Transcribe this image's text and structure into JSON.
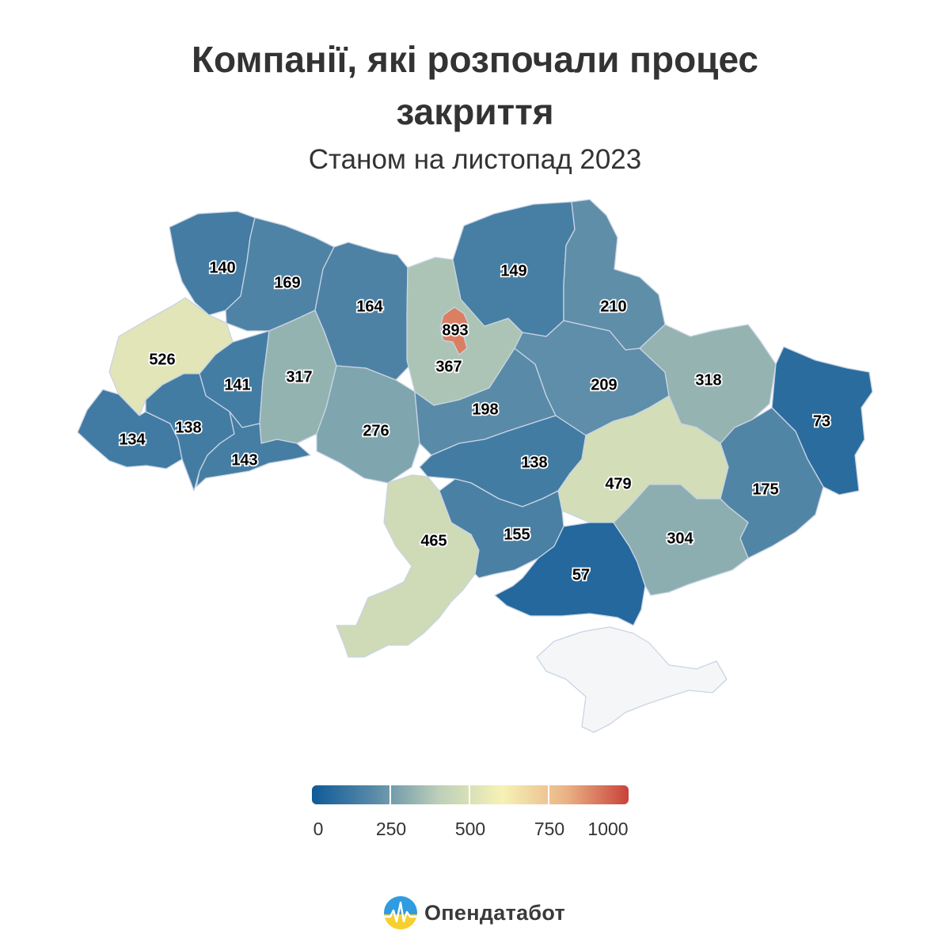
{
  "header": {
    "title": "Компанії, які розпочали процес закриття",
    "subtitle": "Станом на листопад 2023"
  },
  "map": {
    "scale_min": 0,
    "scale_max": 1000,
    "no_data_color": "#f5f6f8",
    "border_color": "#c9d4e4",
    "regions": [
      {
        "id": "volyn",
        "value": 140
      },
      {
        "id": "rivne",
        "value": 169
      },
      {
        "id": "zhytomyr",
        "value": 164
      },
      {
        "id": "kyiv-oblast",
        "value": 367
      },
      {
        "id": "kyiv-city",
        "value": 893
      },
      {
        "id": "chernihiv",
        "value": 149
      },
      {
        "id": "sumy",
        "value": 210
      },
      {
        "id": "lviv",
        "value": 526
      },
      {
        "id": "ternopil",
        "value": 141
      },
      {
        "id": "khmelnytskyi",
        "value": 317
      },
      {
        "id": "vinnytsia",
        "value": 276
      },
      {
        "id": "cherkasy",
        "value": 198
      },
      {
        "id": "poltava",
        "value": 209
      },
      {
        "id": "kharkiv",
        "value": 318
      },
      {
        "id": "luhansk",
        "value": 73
      },
      {
        "id": "zakarpattia",
        "value": 134
      },
      {
        "id": "ivano-frankivsk",
        "value": 138
      },
      {
        "id": "chernivtsi",
        "value": 143
      },
      {
        "id": "kirovohrad",
        "value": 138
      },
      {
        "id": "dnipropetrovsk",
        "value": 479
      },
      {
        "id": "donetsk",
        "value": 175
      },
      {
        "id": "odesa",
        "value": 465
      },
      {
        "id": "mykolaiv",
        "value": 155
      },
      {
        "id": "kherson",
        "value": 57
      },
      {
        "id": "zaporizhzhia",
        "value": 304
      },
      {
        "id": "crimea",
        "value": null
      }
    ]
  },
  "legend": {
    "ticks": [
      "0",
      "250",
      "500",
      "750",
      "1000"
    ],
    "colors": [
      "#0f5a98",
      "#5a8ba8",
      "#bccfb8",
      "#f6f2b6",
      "#eab486",
      "#c9423b"
    ]
  },
  "brand": {
    "name": "Опендатабот",
    "logo_icon": "opendatabot-logo-icon"
  }
}
